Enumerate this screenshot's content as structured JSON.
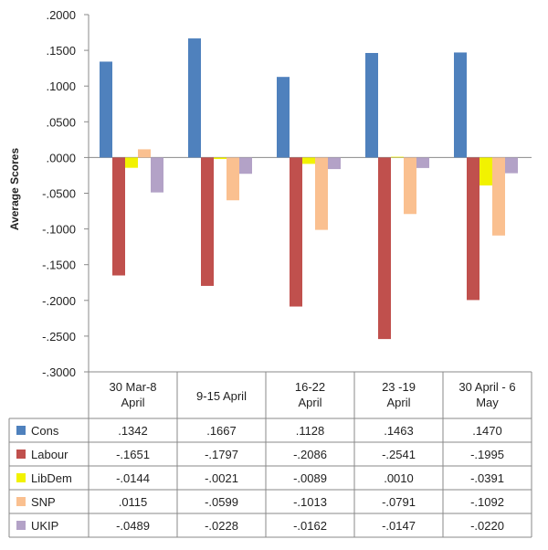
{
  "chart_data": {
    "type": "bar",
    "title": "",
    "xlabel": "",
    "ylabel": "Average Scores",
    "ylim": [
      -0.3,
      0.2
    ],
    "y_ticks": [
      ".2000",
      ".1500",
      ".1000",
      ".0500",
      ".0000",
      "-.0500",
      "-.1000",
      "-.1500",
      "-.2000",
      "-.2500",
      "-.3000"
    ],
    "y_tick_values": [
      0.2,
      0.15,
      0.1,
      0.05,
      0,
      -0.05,
      -0.1,
      -0.15,
      -0.2,
      -0.25,
      -0.3
    ],
    "grid": false,
    "legend": "data-table",
    "categories": [
      [
        "30 Mar-8",
        "April"
      ],
      [
        "9-15 April"
      ],
      [
        "16-22",
        "April"
      ],
      [
        "23 -19",
        "April"
      ],
      [
        "30 April - 6",
        "May"
      ]
    ],
    "series": [
      {
        "name": "Cons",
        "color": "#4F81BD",
        "values": [
          0.1342,
          0.1667,
          0.1128,
          0.1463,
          0.147
        ],
        "labels": [
          ".1342",
          ".1667",
          ".1128",
          ".1463",
          ".1470"
        ]
      },
      {
        "name": "Labour",
        "color": "#C0504D",
        "values": [
          -0.1651,
          -0.1797,
          -0.2086,
          -0.2541,
          -0.1995
        ],
        "labels": [
          "-.1651",
          "-.1797",
          "-.2086",
          "-.2541",
          "-.1995"
        ]
      },
      {
        "name": "LibDem",
        "color": "#F2F200",
        "values": [
          -0.0144,
          -0.0021,
          -0.0089,
          0.001,
          -0.0391
        ],
        "labels": [
          "-.0144",
          "-.0021",
          "-.0089",
          ".0010",
          "-.0391"
        ]
      },
      {
        "name": "SNP",
        "color": "#FAC090",
        "values": [
          0.0115,
          -0.0599,
          -0.1013,
          -0.0791,
          -0.1092
        ],
        "labels": [
          ".0115",
          "-.0599",
          "-.1013",
          "-.0791",
          "-.1092"
        ]
      },
      {
        "name": "UKIP",
        "color": "#B3A2C7",
        "values": [
          -0.0489,
          -0.0228,
          -0.0162,
          -0.0147,
          -0.022
        ],
        "labels": [
          "-.0489",
          "-.0228",
          "-.0162",
          "-.0147",
          "-.0220"
        ]
      }
    ]
  }
}
